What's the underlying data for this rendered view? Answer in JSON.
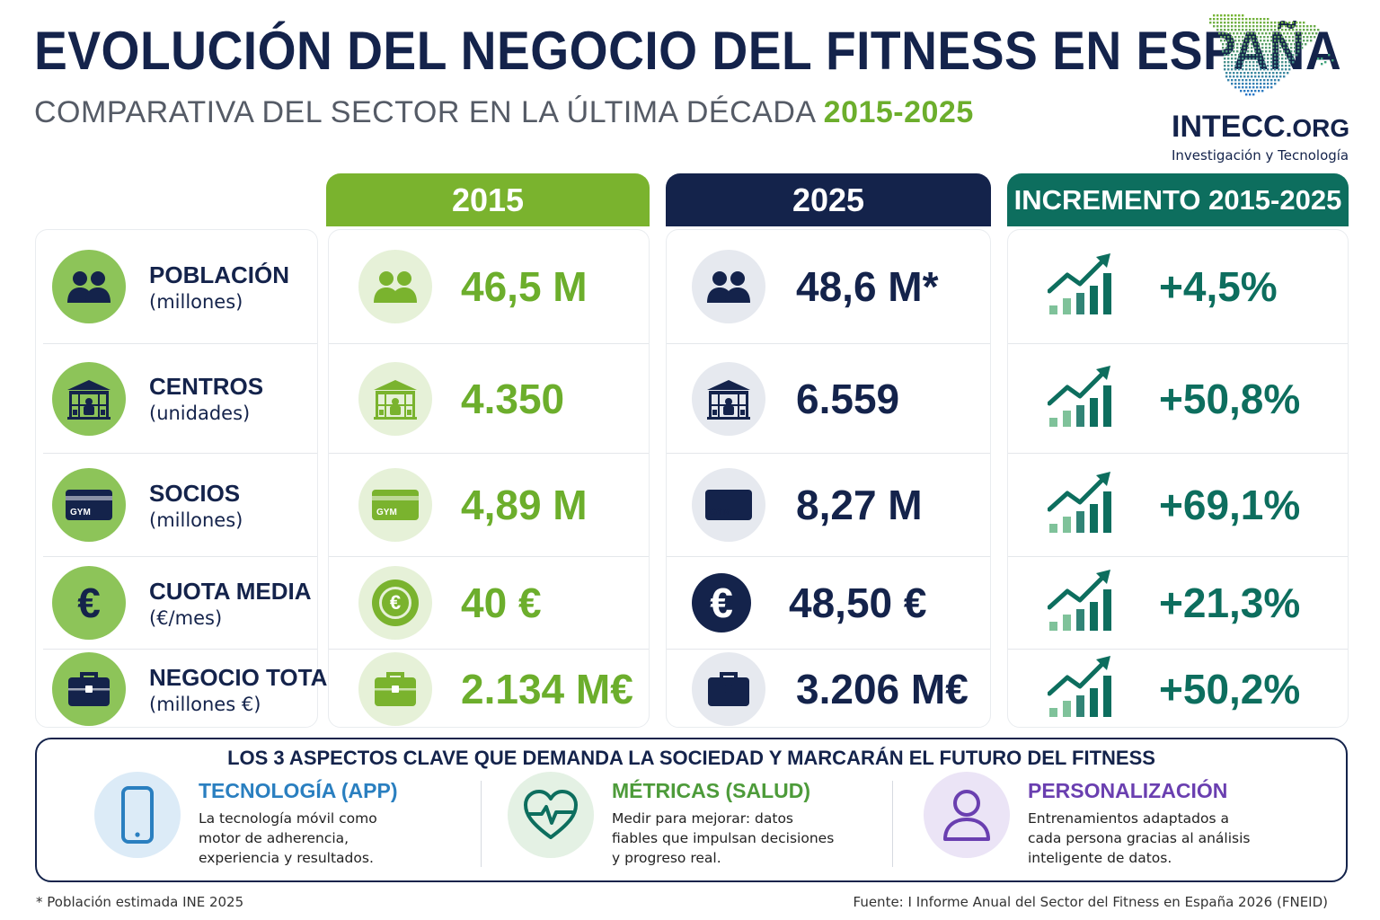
{
  "header": {
    "title": "EVOLUCIÓN DEL NEGOCIO DEL FITNESS EN ESPAÑA",
    "subtitle_main": "COMPARATIVA DEL SECTOR EN LA ÚLTIMA DÉCADA",
    "subtitle_years": "2015-2025"
  },
  "logo": {
    "name": "INTECC",
    "domain": ".ORG",
    "tagline": "Investigación y Tecnología"
  },
  "columns": {
    "y2015": "2015",
    "y2025": "2025",
    "increase": "INCREMENTO 2015-2025"
  },
  "colors": {
    "navy": "#14234b",
    "green": "#7ab32e",
    "teal": "#0d6e5e",
    "blue": "#2a7fc0",
    "purple": "#6a3fb0"
  },
  "rows": [
    {
      "title": "POBLACIÓN",
      "unit": "(millones)",
      "icon": "people-icon",
      "v2015": "46,5 M",
      "v2025": "48,6 M*",
      "increase": "+4,5%"
    },
    {
      "title": "CENTROS",
      "unit": "(unidades)",
      "icon": "gym-building-icon",
      "v2015": "4.350",
      "v2025": "6.559",
      "increase": "+50,8%"
    },
    {
      "title": "SOCIOS",
      "unit": "(millones)",
      "icon": "gym-card-icon",
      "v2015": "4,89 M",
      "v2025": "8,27 M",
      "increase": "+69,1%"
    },
    {
      "title": "CUOTA MEDIA",
      "unit": "(€/mes)",
      "icon": "euro-icon",
      "v2015": "40 €",
      "v2025": "48,50 €",
      "increase": "+21,3%"
    },
    {
      "title": "NEGOCIO TOTAL",
      "unit": "(millones €)",
      "icon": "briefcase-icon",
      "v2015": "2.134 M€",
      "v2025": "3.206 M€",
      "increase": "+50,2%"
    }
  ],
  "card_label": "GYM",
  "euro_symbol": "€",
  "chart_data": {
    "type": "table",
    "title": "EVOLUCIÓN DEL NEGOCIO DEL FITNESS EN ESPAÑA",
    "subtitle": "COMPARATIVA DEL SECTOR EN LA ÚLTIMA DÉCADA 2015-2025",
    "columns": [
      "2015",
      "2025",
      "INCREMENTO 2015-2025"
    ],
    "series": [
      {
        "name": "POBLACIÓN",
        "unit": "millones",
        "values": [
          46.5,
          48.6
        ],
        "increase_pct": 4.5
      },
      {
        "name": "CENTROS",
        "unit": "unidades",
        "values": [
          4350,
          6559
        ],
        "increase_pct": 50.8
      },
      {
        "name": "SOCIOS",
        "unit": "millones",
        "values": [
          4.89,
          8.27
        ],
        "increase_pct": 69.1
      },
      {
        "name": "CUOTA MEDIA",
        "unit": "€/mes",
        "values": [
          40,
          48.5
        ],
        "increase_pct": 21.3
      },
      {
        "name": "NEGOCIO TOTAL",
        "unit": "millones €",
        "values": [
          2134,
          3206
        ],
        "increase_pct": 50.2
      }
    ]
  },
  "key_aspects": {
    "title": "LOS 3 ASPECTOS CLAVE QUE DEMANDA LA SOCIEDAD Y MARCARÁN EL FUTURO DEL FITNESS",
    "items": [
      {
        "title": "TECNOLOGÍA (APP)",
        "desc": "La tecnología móvil como motor de adherencia, experiencia y resultados.",
        "icon": "smartphone-icon"
      },
      {
        "title": "MÉTRICAS (SALUD)",
        "desc": "Medir para mejorar: datos fiables que impulsan decisiones y progreso real.",
        "icon": "heart-pulse-icon"
      },
      {
        "title": "PERSONALIZACIÓN",
        "desc": "Entrenamientos adaptados a cada persona gracias al análisis inteligente de datos.",
        "icon": "user-icon"
      }
    ]
  },
  "footer": {
    "note": "* Población estimada INE 2025",
    "source": "Fuente: I Informe Anual del Sector del Fitness en España 2026 (FNEID)"
  }
}
